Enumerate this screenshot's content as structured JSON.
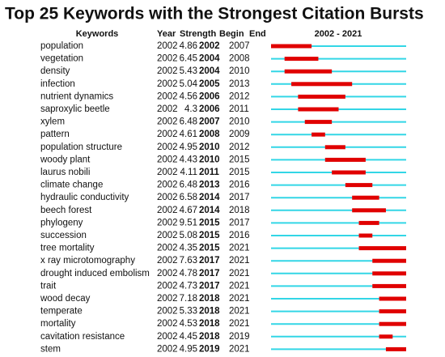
{
  "title": "Top 25 Keywords with the Strongest Citation Bursts",
  "header": {
    "keywords": "Keywords",
    "year": "Year",
    "strength": "Strength",
    "begin": "Begin",
    "end": "End",
    "range": "2002 - 2021"
  },
  "rows": [
    [
      "population",
      2002,
      4.86,
      2002,
      2007
    ],
    [
      "vegetation",
      2002,
      6.45,
      2004,
      2008
    ],
    [
      "density",
      2002,
      5.43,
      2004,
      2010
    ],
    [
      "infection",
      2002,
      5.04,
      2005,
      2013
    ],
    [
      "nutrient dynamics",
      2002,
      4.56,
      2006,
      2012
    ],
    [
      "saproxylic beetle",
      2002,
      4.3,
      2006,
      2011
    ],
    [
      "xylem",
      2002,
      6.48,
      2007,
      2010
    ],
    [
      "pattern",
      2002,
      4.61,
      2008,
      2009
    ],
    [
      "population structure",
      2002,
      4.95,
      2010,
      2012
    ],
    [
      "woody plant",
      2002,
      4.43,
      2010,
      2015
    ],
    [
      "laurus nobili",
      2002,
      4.11,
      2011,
      2015
    ],
    [
      "climate change",
      2002,
      6.48,
      2013,
      2016
    ],
    [
      "hydraulic conductivity",
      2002,
      6.58,
      2014,
      2017
    ],
    [
      "beech forest",
      2002,
      4.67,
      2014,
      2018
    ],
    [
      "phylogeny",
      2002,
      9.51,
      2015,
      2017
    ],
    [
      "succession",
      2002,
      5.08,
      2015,
      2016
    ],
    [
      "tree mortality",
      2002,
      4.35,
      2015,
      2021
    ],
    [
      "x ray microtomography",
      2002,
      7.63,
      2017,
      2021
    ],
    [
      "drought induced embolism",
      2002,
      4.78,
      2017,
      2021
    ],
    [
      "trait",
      2002,
      4.73,
      2017,
      2021
    ],
    [
      "wood decay",
      2002,
      7.18,
      2018,
      2021
    ],
    [
      "temperate",
      2002,
      5.33,
      2018,
      2021
    ],
    [
      "mortality",
      2002,
      4.53,
      2018,
      2021
    ],
    [
      "cavitation resistance",
      2002,
      4.45,
      2018,
      2019
    ],
    [
      "stem",
      2002,
      4.95,
      2019,
      2021
    ]
  ]
}
